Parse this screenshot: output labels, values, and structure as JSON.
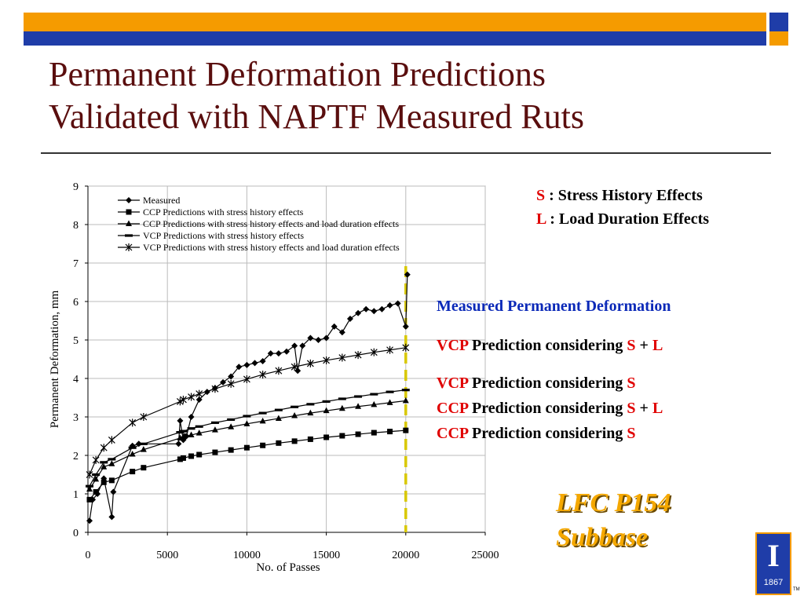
{
  "slide": {
    "title_line1": "Permanent Deformation Predictions",
    "title_line2": "Validated with NAPTF Measured Ruts",
    "colors": {
      "orange_bar": "#f59b00",
      "blue_bar": "#1f3da8",
      "title": "#5a0e0e",
      "red": "#e00000",
      "blue_text": "#0b29b8",
      "gold": "#f5a800",
      "dashed_line": "#d8c800"
    }
  },
  "legend_box": {
    "s_key": "S",
    "s_text": " : Stress History Effects",
    "l_key": "L",
    "l_text": " : Load Duration Effects"
  },
  "annotations": {
    "measured": "Measured Permanent Deformation",
    "vcp_sl": {
      "model": "VCP",
      "text": " Prediction considering ",
      "s": "S",
      "plus": " + ",
      "l": "L"
    },
    "vcp_s": {
      "model": "VCP",
      "text": " Prediction considering ",
      "s": "S"
    },
    "ccp_sl": {
      "model": "CCP",
      "text": " Prediction considering ",
      "s": "S",
      "plus": " + ",
      "l": "L"
    },
    "ccp_s": {
      "model": "CCP",
      "text": " Prediction considering ",
      "s": "S"
    }
  },
  "section_label": {
    "line1": "LFC P154",
    "line2": "Subbase"
  },
  "logo": {
    "letter": "I",
    "year": "1867",
    "tm": "TM",
    "icon": "university-block-i-icon"
  },
  "chart_data": {
    "type": "line",
    "xlabel": "No. of Passes",
    "ylabel": "Permanent Deformation, mm",
    "xlim": [
      0,
      25000
    ],
    "ylim": [
      0,
      9
    ],
    "xticks": [
      0,
      5000,
      10000,
      15000,
      20000,
      25000
    ],
    "yticks": [
      0,
      1,
      2,
      3,
      4,
      5,
      6,
      7,
      8,
      9
    ],
    "grid": true,
    "legend_position": "top-left inside",
    "vertical_marker_x": 20000,
    "series": [
      {
        "name": "Measured",
        "marker": "diamond",
        "x": [
          100,
          300,
          600,
          1000,
          1500,
          1600,
          2800,
          3200,
          5700,
          5800,
          6000,
          6100,
          6200,
          6500,
          7000,
          7500,
          8000,
          8500,
          9000,
          9500,
          10000,
          10500,
          11000,
          11500,
          12000,
          12500,
          13000,
          13200,
          13500,
          14000,
          14500,
          15000,
          15500,
          16000,
          16500,
          17000,
          17500,
          18000,
          18500,
          19000,
          19500,
          20000,
          20100
        ],
        "y": [
          0.3,
          0.85,
          1.0,
          1.4,
          0.4,
          1.05,
          2.25,
          2.3,
          2.3,
          2.9,
          2.4,
          2.5,
          2.5,
          3.0,
          3.45,
          3.65,
          3.75,
          3.9,
          4.05,
          4.3,
          4.35,
          4.4,
          4.45,
          4.65,
          4.65,
          4.7,
          4.85,
          4.2,
          4.85,
          5.05,
          5.0,
          5.05,
          5.35,
          5.2,
          5.55,
          5.7,
          5.8,
          5.75,
          5.8,
          5.9,
          5.95,
          5.35,
          6.7
        ]
      },
      {
        "name": "CCP Predictions with stress history effects",
        "marker": "square",
        "x": [
          100,
          500,
          1000,
          1500,
          2800,
          3500,
          5800,
          6000,
          6500,
          7000,
          8000,
          9000,
          10000,
          11000,
          12000,
          13000,
          14000,
          15000,
          16000,
          17000,
          18000,
          19000,
          20000
        ],
        "y": [
          0.85,
          1.05,
          1.3,
          1.35,
          1.58,
          1.68,
          1.9,
          1.93,
          1.98,
          2.02,
          2.08,
          2.14,
          2.2,
          2.26,
          2.32,
          2.37,
          2.42,
          2.47,
          2.51,
          2.55,
          2.59,
          2.62,
          2.65
        ]
      },
      {
        "name": "CCP Predictions with stress history effects and load duration effects",
        "marker": "triangle",
        "x": [
          100,
          500,
          1000,
          1500,
          2800,
          3500,
          5800,
          6000,
          6500,
          7000,
          8000,
          9000,
          10000,
          11000,
          12000,
          13000,
          14000,
          15000,
          16000,
          17000,
          18000,
          19000,
          20000
        ],
        "y": [
          1.12,
          1.38,
          1.7,
          1.78,
          2.03,
          2.15,
          2.45,
          2.48,
          2.53,
          2.58,
          2.66,
          2.74,
          2.82,
          2.89,
          2.96,
          3.03,
          3.1,
          3.16,
          3.22,
          3.27,
          3.32,
          3.37,
          3.42
        ]
      },
      {
        "name": "VCP Predictions with stress history effects",
        "marker": "dash",
        "x": [
          100,
          500,
          1000,
          1500,
          2800,
          3500,
          5800,
          6000,
          6500,
          7000,
          8000,
          9000,
          10000,
          11000,
          12000,
          13000,
          14000,
          15000,
          16000,
          17000,
          18000,
          19000,
          20000
        ],
        "y": [
          1.2,
          1.5,
          1.82,
          1.9,
          2.2,
          2.3,
          2.6,
          2.63,
          2.7,
          2.75,
          2.85,
          2.93,
          3.02,
          3.1,
          3.18,
          3.26,
          3.33,
          3.4,
          3.47,
          3.53,
          3.59,
          3.65,
          3.7
        ]
      },
      {
        "name": "VCP Predictions with stress history effects and load duration effects",
        "marker": "star",
        "x": [
          100,
          500,
          1000,
          1500,
          2800,
          3500,
          5800,
          6000,
          6500,
          7000,
          8000,
          9000,
          10000,
          11000,
          12000,
          13000,
          14000,
          15000,
          16000,
          17000,
          18000,
          19000,
          20000
        ],
        "y": [
          1.5,
          1.88,
          2.2,
          2.4,
          2.85,
          3.0,
          3.4,
          3.45,
          3.52,
          3.6,
          3.73,
          3.86,
          3.98,
          4.1,
          4.2,
          4.3,
          4.39,
          4.47,
          4.54,
          4.61,
          4.68,
          4.74,
          4.8
        ]
      }
    ]
  }
}
